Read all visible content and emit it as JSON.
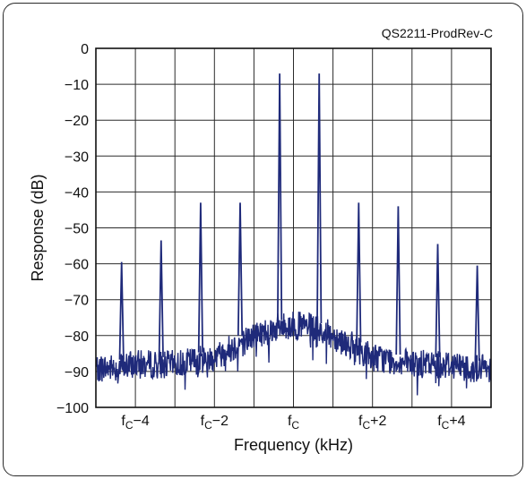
{
  "chart_data": {
    "type": "line",
    "annotation": "QS2211-ProdRev-C",
    "xlabel": "Frequency (kHz)",
    "ylabel": "Response (dB)",
    "xlim": [
      -5,
      5
    ],
    "ylim": [
      -100,
      0
    ],
    "yticks": [
      0,
      -10,
      -20,
      -30,
      -40,
      -50,
      -60,
      -70,
      -80,
      -90,
      -100
    ],
    "ytick_labels": [
      "0",
      "−10",
      "−20",
      "−30",
      "−40",
      "−50",
      "−60",
      "−70",
      "−80",
      "−90",
      "−100"
    ],
    "xgrid": [
      -5,
      -4,
      -3,
      -2,
      -1,
      0,
      1,
      2,
      3,
      4,
      5
    ],
    "xtick_labels": [
      {
        "x": -4,
        "base": "f",
        "sub": "C",
        "suffix": "−4"
      },
      {
        "x": -2,
        "base": "f",
        "sub": "C",
        "suffix": "−2"
      },
      {
        "x": 0,
        "base": "f",
        "sub": "C",
        "suffix": ""
      },
      {
        "x": 2,
        "base": "f",
        "sub": "C",
        "suffix": "+2"
      },
      {
        "x": 4,
        "base": "f",
        "sub": "C",
        "suffix": "+4"
      }
    ],
    "grid": true,
    "line_color": "#1f2a7a",
    "noise_floor": [
      [
        -5,
        -89
      ],
      [
        -4.5,
        -89
      ],
      [
        -4,
        -88
      ],
      [
        -3.5,
        -88
      ],
      [
        -3,
        -88
      ],
      [
        -2.5,
        -87
      ],
      [
        -2,
        -86
      ],
      [
        -1.5,
        -83
      ],
      [
        -1,
        -80
      ],
      [
        -0.5,
        -78
      ],
      [
        0,
        -77
      ],
      [
        0.5,
        -78
      ],
      [
        1,
        -80
      ],
      [
        1.5,
        -83
      ],
      [
        2,
        -86
      ],
      [
        2.5,
        -87
      ],
      [
        3,
        -88
      ],
      [
        3.5,
        -88
      ],
      [
        4,
        -88
      ],
      [
        4.5,
        -89
      ],
      [
        5,
        -89
      ]
    ],
    "series": [
      {
        "values": [
          {
            "x": -4.35,
            "y": -59.5
          },
          {
            "x": -3.35,
            "y": -53.5
          },
          {
            "x": -2.35,
            "y": -43
          },
          {
            "x": -1.35,
            "y": -43
          },
          {
            "x": -0.35,
            "y": -7
          },
          {
            "x": 0.65,
            "y": -7
          },
          {
            "x": 1.65,
            "y": -43
          },
          {
            "x": 2.65,
            "y": -44
          },
          {
            "x": 3.65,
            "y": -54.5
          },
          {
            "x": 4.65,
            "y": -60.5
          }
        ]
      }
    ]
  }
}
